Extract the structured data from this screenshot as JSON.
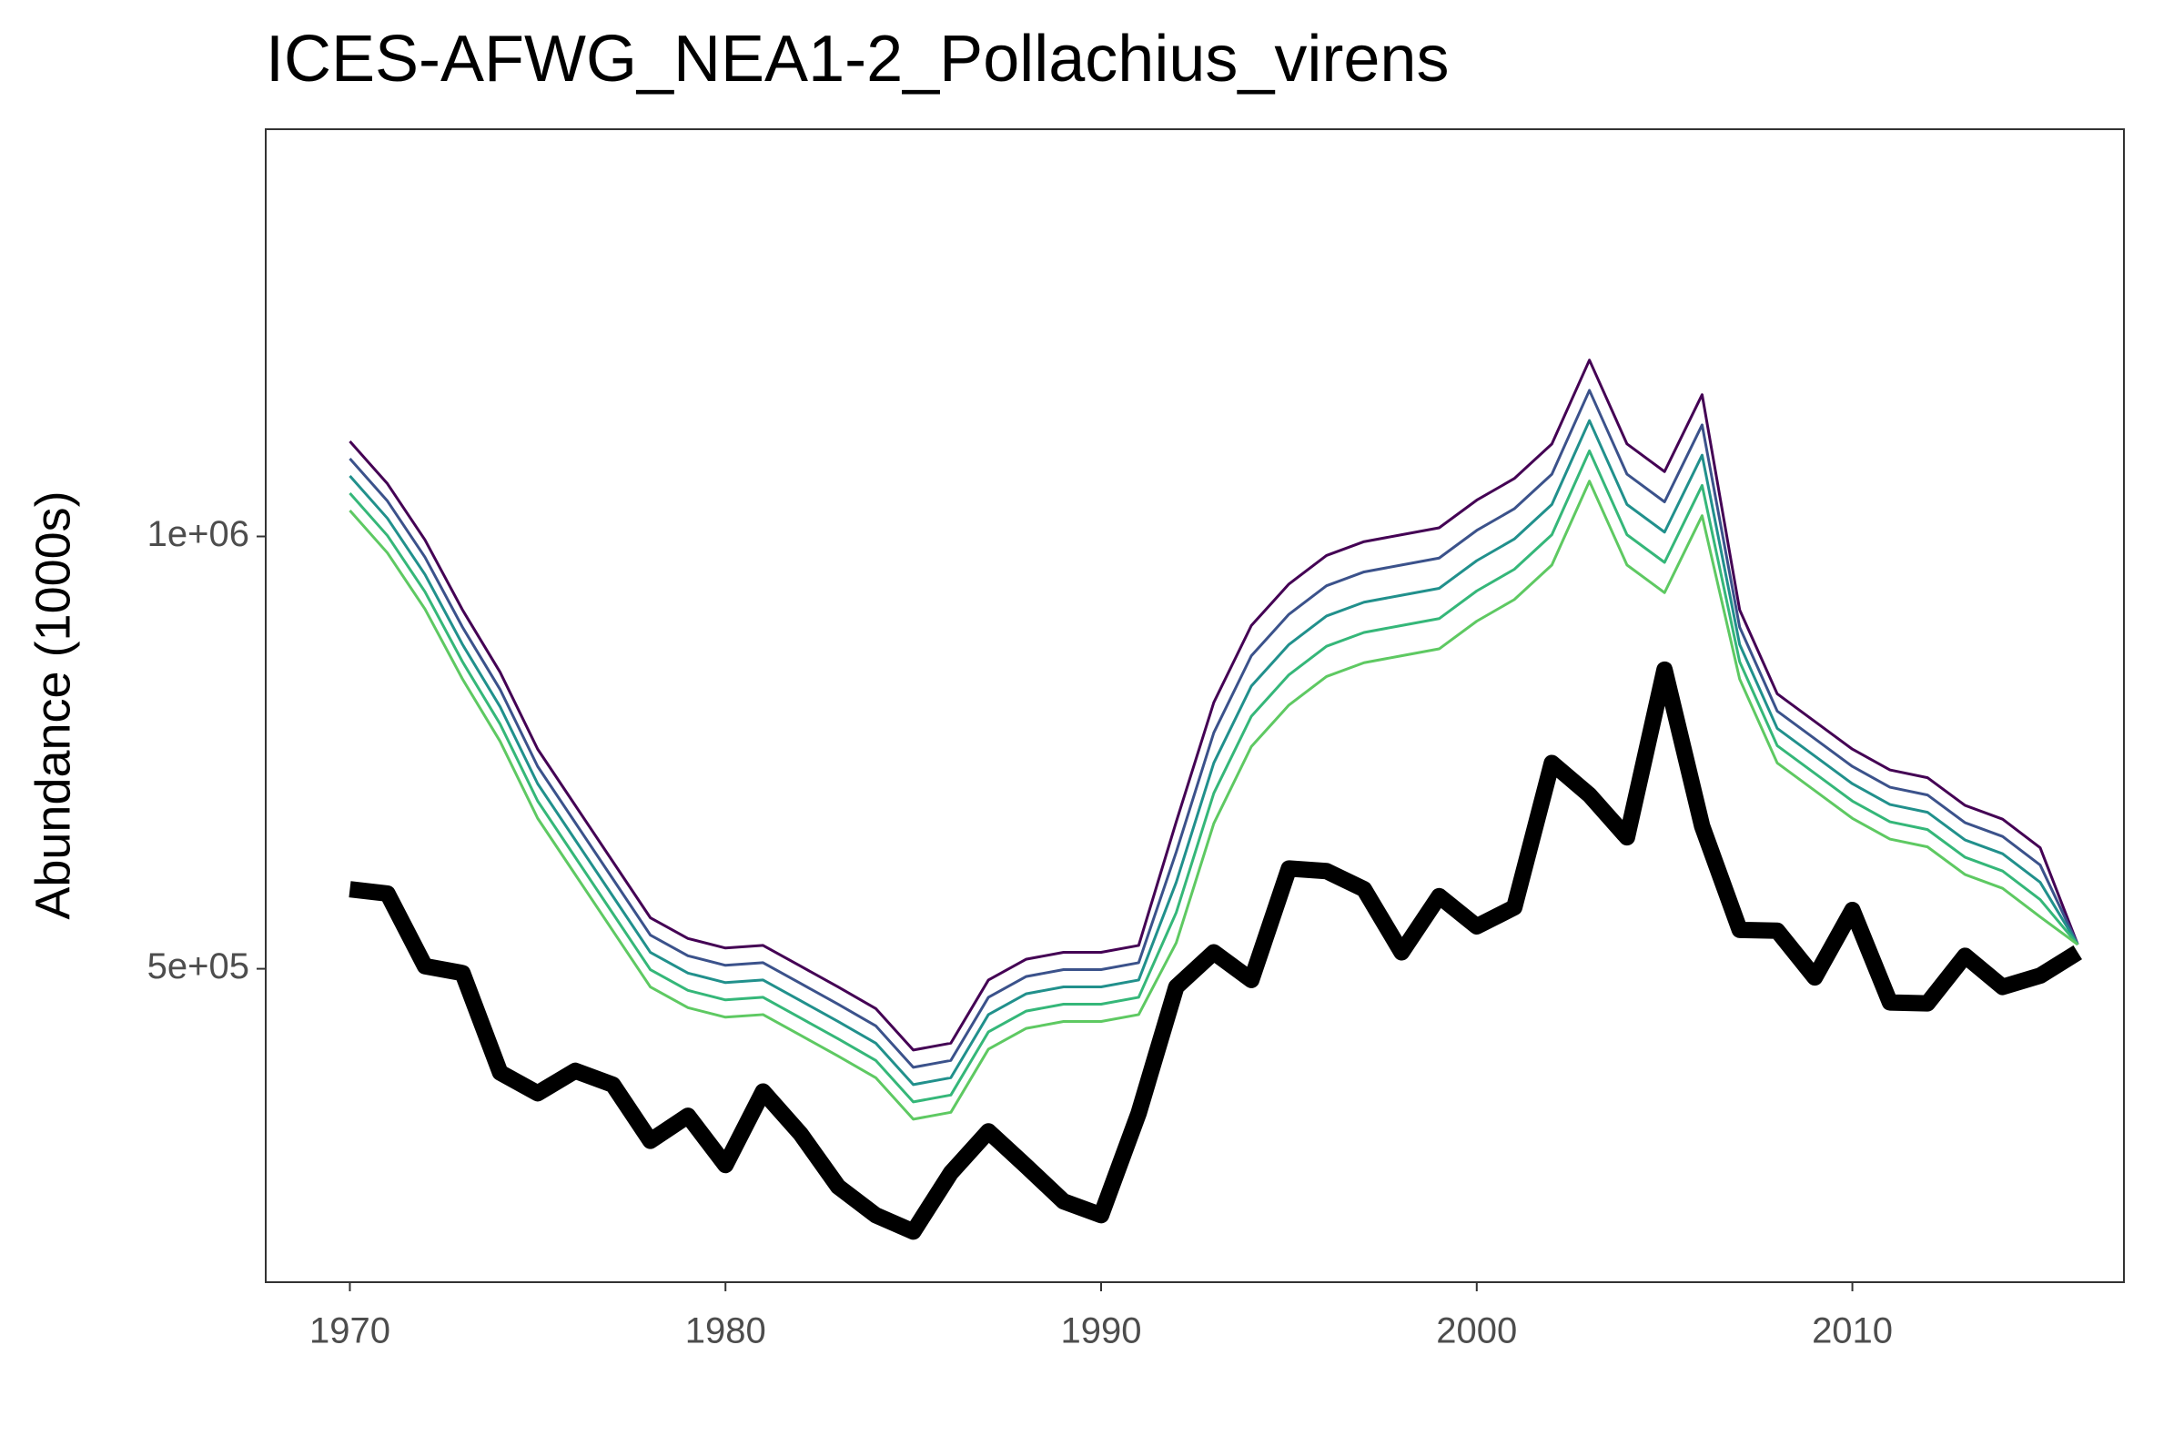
{
  "chart_data": {
    "type": "line",
    "title": "ICES-AFWG_NEA1-2_Pollachius_virens",
    "y_label": "Abundance (1000s)",
    "x": [
      1970,
      1971,
      1972,
      1973,
      1974,
      1975,
      1976,
      1977,
      1978,
      1979,
      1980,
      1981,
      1982,
      1983,
      1984,
      1985,
      1986,
      1987,
      1988,
      1989,
      1990,
      1991,
      1992,
      1993,
      1994,
      1995,
      1996,
      1997,
      1998,
      1999,
      2000,
      2001,
      2002,
      2003,
      2004,
      2005,
      2006,
      2007,
      2008,
      2009,
      2010,
      2011,
      2012,
      2013,
      2014,
      2015,
      2016
    ],
    "xlim": [
      1967.76,
      2017.23
    ],
    "xticks": [
      1970,
      1980,
      1990,
      2000,
      2010
    ],
    "ylim": [
      137500,
      1471000
    ],
    "yticks": [
      {
        "value": 500000,
        "label": "5e+05"
      },
      {
        "value": 1000000,
        "label": "1e+06"
      }
    ],
    "grid": false,
    "series": [
      {
        "color": "#440154",
        "width": 2,
        "values": [
          1110000,
          1061000,
          996000,
          915000,
          843000,
          754000,
          689000,
          624000,
          559000,
          535000,
          524000,
          527000,
          503000,
          479000,
          454000,
          406000,
          414000,
          487000,
          511000,
          519000,
          519000,
          527000,
          670000,
          808000,
          897000,
          945000,
          978000,
          994000,
          1002000,
          1010000,
          1042000,
          1067000,
          1107000,
          1204000,
          1107000,
          1075000,
          1164000,
          915000,
          818000,
          786000,
          754000,
          730000,
          721000,
          689000,
          673000,
          640000,
          528000
        ]
      },
      {
        "color": "#3b528b",
        "width": 2,
        "values": [
          1090000,
          1041000,
          976000,
          895000,
          823000,
          734000,
          669000,
          604000,
          539000,
          515000,
          504000,
          507000,
          483000,
          459000,
          434000,
          386000,
          394000,
          467000,
          491000,
          499000,
          499000,
          507000,
          635000,
          773000,
          862000,
          910000,
          943000,
          959000,
          967000,
          975000,
          1007000,
          1032000,
          1072000,
          1169000,
          1072000,
          1040000,
          1129000,
          895000,
          798000,
          766000,
          734000,
          710000,
          701000,
          669000,
          653000,
          620000,
          528000
        ]
      },
      {
        "color": "#21908c",
        "width": 2,
        "values": [
          1070000,
          1021000,
          956000,
          875000,
          803000,
          714000,
          649000,
          584000,
          519000,
          495000,
          484000,
          487000,
          463000,
          439000,
          414000,
          366000,
          374000,
          447000,
          471000,
          479000,
          479000,
          487000,
          600000,
          738000,
          827000,
          875000,
          908000,
          924000,
          932000,
          940000,
          972000,
          997000,
          1037000,
          1134000,
          1037000,
          1005000,
          1094000,
          875000,
          778000,
          746000,
          714000,
          690000,
          681000,
          649000,
          633000,
          600000,
          528000
        ]
      },
      {
        "color": "#35b779",
        "width": 2,
        "values": [
          1050000,
          1001000,
          936000,
          855000,
          783000,
          694000,
          629000,
          564000,
          499000,
          475000,
          464000,
          467000,
          443000,
          419000,
          394000,
          346000,
          354000,
          427000,
          451000,
          459000,
          459000,
          467000,
          565000,
          703000,
          792000,
          840000,
          873000,
          889000,
          897000,
          905000,
          937000,
          962000,
          1002000,
          1099000,
          1002000,
          970000,
          1059000,
          855000,
          758000,
          726000,
          694000,
          670000,
          661000,
          629000,
          613000,
          580000,
          528000
        ]
      },
      {
        "color": "#5ec962",
        "width": 2,
        "values": [
          1030000,
          981000,
          916000,
          835000,
          763000,
          674000,
          609000,
          544000,
          479000,
          455000,
          444000,
          447000,
          423000,
          399000,
          374000,
          326000,
          334000,
          407000,
          431000,
          439000,
          439000,
          447000,
          530000,
          668000,
          757000,
          805000,
          838000,
          854000,
          862000,
          870000,
          902000,
          927000,
          967000,
          1064000,
          967000,
          935000,
          1024000,
          835000,
          738000,
          706000,
          674000,
          650000,
          641000,
          609000,
          593000,
          560000,
          528000
        ]
      },
      {
        "color": "#000000",
        "width": 12,
        "values": [
          592000,
          587000,
          503000,
          495000,
          380000,
          356000,
          382000,
          366000,
          301000,
          330000,
          273000,
          358000,
          309000,
          248000,
          215000,
          196000,
          264000,
          312000,
          272000,
          231000,
          215000,
          333000,
          479000,
          519000,
          487000,
          616000,
          613000,
          592000,
          519000,
          584000,
          549000,
          571000,
          738000,
          701000,
          652000,
          846000,
          665000,
          545000,
          544000,
          490000,
          568000,
          461000,
          460000,
          515000,
          479000,
          492000,
          519000
        ]
      }
    ]
  }
}
